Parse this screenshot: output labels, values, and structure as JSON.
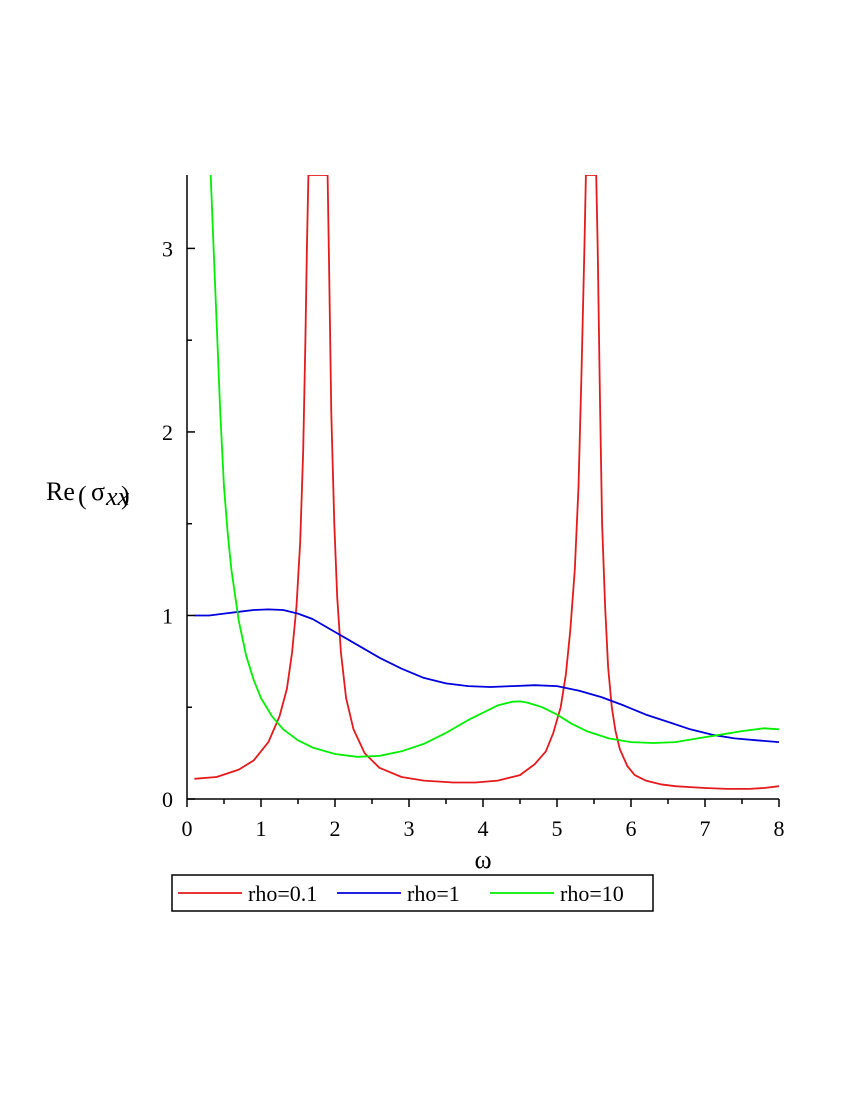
{
  "chart_data": {
    "type": "line",
    "xlabel": "ω",
    "ylabel": {
      "prefix": "Re",
      "symbol": "σ",
      "subscript": "xx"
    },
    "xlim": [
      0,
      8
    ],
    "ylim": [
      0,
      3.4
    ],
    "x_ticks": [
      "0",
      "1",
      "2",
      "3",
      "4",
      "5",
      "6",
      "7",
      "8"
    ],
    "x_tick_values": [
      0,
      1,
      2,
      3,
      4,
      5,
      6,
      7,
      8
    ],
    "y_ticks": [
      "0",
      "1",
      "2",
      "3"
    ],
    "y_tick_values": [
      0,
      1,
      2,
      3
    ],
    "grid": false,
    "legend_position": "bottom",
    "series": [
      {
        "name": "rho=0.1",
        "color": "#e41a1c",
        "x": [
          0.1,
          0.4,
          0.7,
          0.9,
          1.1,
          1.25,
          1.35,
          1.42,
          1.48,
          1.53,
          1.57,
          1.6,
          1.62,
          1.64,
          1.9,
          1.92,
          1.95,
          1.99,
          2.03,
          2.08,
          2.15,
          2.25,
          2.4,
          2.6,
          2.9,
          3.2,
          3.6,
          3.9,
          4.2,
          4.5,
          4.7,
          4.85,
          4.95,
          5.05,
          5.12,
          5.18,
          5.24,
          5.29,
          5.33,
          5.37,
          5.39,
          5.53,
          5.55,
          5.58,
          5.61,
          5.65,
          5.69,
          5.74,
          5.79,
          5.85,
          5.95,
          6.05,
          6.2,
          6.4,
          6.6,
          6.8,
          7.0,
          7.3,
          7.6,
          7.8,
          8.0
        ],
        "y": [
          0.11,
          0.12,
          0.16,
          0.21,
          0.31,
          0.45,
          0.6,
          0.8,
          1.05,
          1.4,
          1.9,
          2.5,
          3.0,
          3.4,
          3.4,
          2.9,
          2.1,
          1.5,
          1.1,
          0.8,
          0.55,
          0.38,
          0.25,
          0.17,
          0.12,
          0.1,
          0.09,
          0.09,
          0.1,
          0.13,
          0.19,
          0.26,
          0.36,
          0.5,
          0.68,
          0.92,
          1.25,
          1.7,
          2.3,
          3.0,
          3.4,
          3.4,
          3.0,
          2.2,
          1.5,
          1.05,
          0.72,
          0.5,
          0.37,
          0.27,
          0.18,
          0.13,
          0.1,
          0.08,
          0.07,
          0.065,
          0.06,
          0.055,
          0.055,
          0.06,
          0.07
        ]
      },
      {
        "name": "rho=1",
        "color": "#0000dd",
        "x": [
          0.1,
          0.3,
          0.5,
          0.7,
          0.9,
          1.1,
          1.3,
          1.5,
          1.7,
          2.0,
          2.3,
          2.6,
          2.9,
          3.2,
          3.5,
          3.8,
          4.1,
          4.4,
          4.7,
          5.0,
          5.3,
          5.6,
          5.9,
          6.2,
          6.5,
          6.8,
          7.1,
          7.4,
          7.7,
          8.0
        ],
        "y": [
          1.0,
          1.0,
          1.01,
          1.02,
          1.03,
          1.033,
          1.03,
          1.01,
          0.98,
          0.91,
          0.84,
          0.77,
          0.71,
          0.66,
          0.63,
          0.615,
          0.61,
          0.615,
          0.62,
          0.615,
          0.59,
          0.555,
          0.51,
          0.46,
          0.42,
          0.38,
          0.35,
          0.33,
          0.32,
          0.31
        ]
      },
      {
        "name": "rho=10",
        "color": "#00ee00",
        "x": [
          0.32,
          0.36,
          0.4,
          0.45,
          0.5,
          0.55,
          0.6,
          0.7,
          0.8,
          0.9,
          1.0,
          1.15,
          1.3,
          1.5,
          1.7,
          2.0,
          2.3,
          2.6,
          2.9,
          3.2,
          3.5,
          3.8,
          4.0,
          4.2,
          4.4,
          4.5,
          4.6,
          4.8,
          5.0,
          5.2,
          5.4,
          5.7,
          6.0,
          6.3,
          6.6,
          6.9,
          7.2,
          7.5,
          7.8,
          8.0
        ],
        "y": [
          3.4,
          3.0,
          2.6,
          2.1,
          1.7,
          1.45,
          1.25,
          0.97,
          0.78,
          0.65,
          0.55,
          0.45,
          0.38,
          0.32,
          0.28,
          0.245,
          0.23,
          0.235,
          0.26,
          0.3,
          0.36,
          0.43,
          0.47,
          0.51,
          0.53,
          0.532,
          0.525,
          0.5,
          0.46,
          0.41,
          0.37,
          0.33,
          0.31,
          0.305,
          0.31,
          0.33,
          0.35,
          0.37,
          0.385,
          0.38
        ]
      }
    ]
  }
}
